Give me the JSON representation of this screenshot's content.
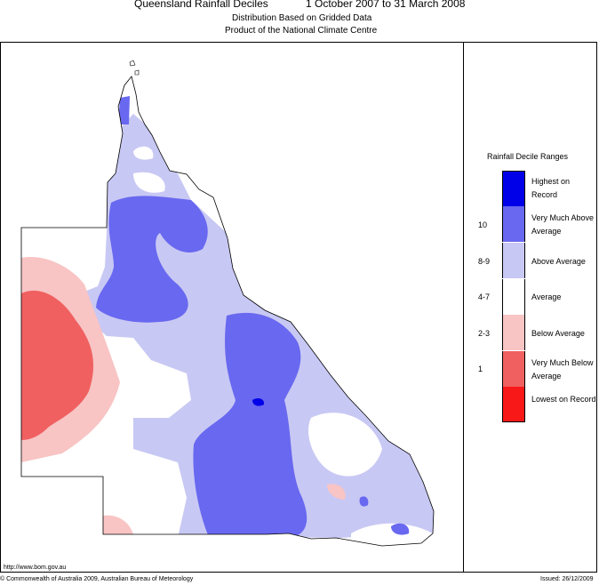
{
  "header": {
    "title": "Queensland Rainfall Deciles",
    "period": "1 October 2007 to 31 March 2008",
    "subtitle1": "Distribution Based on Gridded Data",
    "subtitle2": "Product of the National Climate Centre"
  },
  "legend": {
    "title": "Rainfall Decile Ranges",
    "items": [
      {
        "label": "Highest on Record",
        "range": "",
        "color": "#0000e8"
      },
      {
        "label": "Very Much Above Average",
        "range": "10",
        "color": "#6868f0"
      },
      {
        "label": "Above Average",
        "range": "8-9",
        "color": "#c8c8f4"
      },
      {
        "label": "Average",
        "range": "4-7",
        "color": "#ffffff"
      },
      {
        "label": "Below Average",
        "range": "2-3",
        "color": "#f8c4c4"
      },
      {
        "label": "Very Much Below Average",
        "range": "1",
        "color": "#f06060"
      },
      {
        "label": "Lowest on Record",
        "range": "",
        "color": "#f81818"
      }
    ]
  },
  "footer": {
    "url": "http://www.bom.gov.au",
    "copyright": "© Commonwealth of Australia 2009, Australian Bureau of Meteorology",
    "issued": "Issued: 26/12/2009"
  }
}
